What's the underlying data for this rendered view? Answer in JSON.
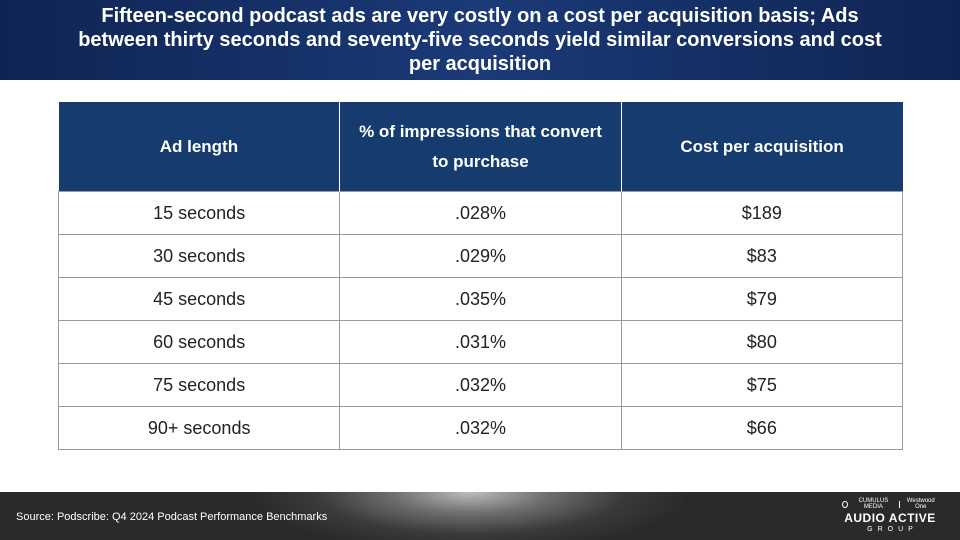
{
  "header": {
    "title": "Fifteen-second podcast ads are very costly on a cost per acquisition basis; Ads between thirty seconds and seventy-five seconds yield similar conversions and cost per acquisition"
  },
  "table": {
    "columns": [
      "Ad length",
      "% of impressions that convert to purchase",
      "Cost per acquisition"
    ],
    "rows": [
      [
        "15 seconds",
        ".028%",
        "$189"
      ],
      [
        "30 seconds",
        ".029%",
        "$83"
      ],
      [
        "45 seconds",
        ".035%",
        "$79"
      ],
      [
        "60 seconds",
        ".031%",
        "$80"
      ],
      [
        "75 seconds",
        ".032%",
        "$75"
      ],
      [
        "90+ seconds",
        ".032%",
        "$66"
      ]
    ]
  },
  "footer": {
    "source": "Source: Podscribe: Q4 2024 Podcast Performance Benchmarks",
    "logo_brand_left": "CUMULUS MEDIA",
    "logo_brand_right": "Westwood One",
    "logo_main": "AUDIO ACTIVE",
    "logo_sub": "GROUP"
  },
  "colors": {
    "header_bg": "#1b3a78",
    "table_header_bg": "#163b6e",
    "footer_bg": "#3a3a3a"
  }
}
